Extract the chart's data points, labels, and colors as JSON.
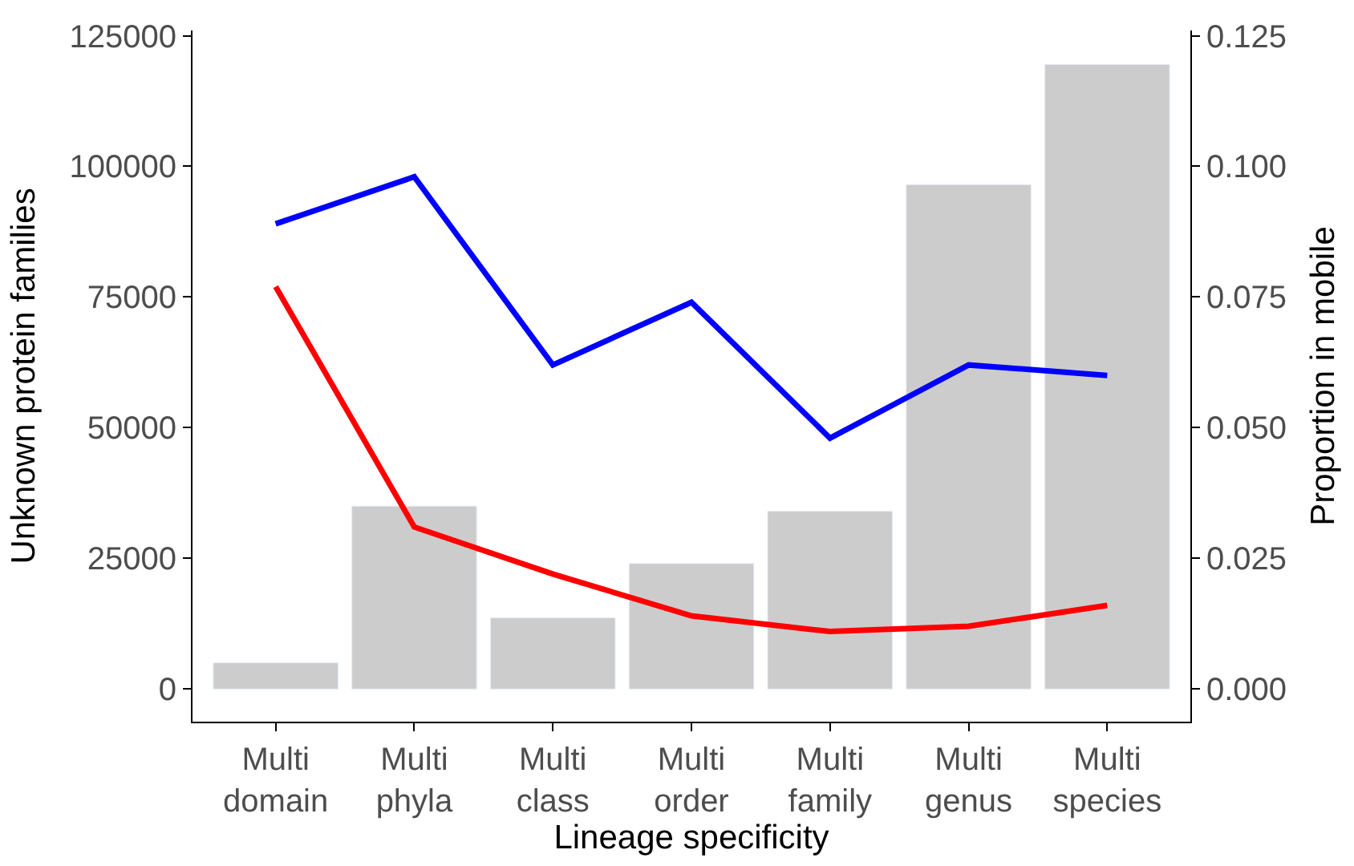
{
  "chart_data": {
    "type": "bar",
    "xlabel": "Lineage specificity",
    "ylabel": "Unknown protein families",
    "y2label": "Proportion in mobile",
    "categories": [
      "Multi\ndomain",
      "Multi\nphyla",
      "Multi\nclass",
      "Multi\norder",
      "Multi\nfamily",
      "Multi\ngenus",
      "Multi\nspecies"
    ],
    "series": [
      {
        "color": "#cccccc",
        "values": [
          5000,
          35000,
          13600,
          24000,
          34000,
          96500,
          119500
        ]
      },
      {
        "type": "line",
        "axis": "y2",
        "color": "#0000ff",
        "values": [
          0.089,
          0.098,
          0.062,
          0.074,
          0.048,
          0.062,
          0.06
        ]
      },
      {
        "type": "line",
        "axis": "y2",
        "color": "#ff0000",
        "values": [
          0.077,
          0.031,
          0.022,
          0.014,
          0.011,
          0.012,
          0.016
        ]
      }
    ],
    "ylim": [
      -6250,
      126000
    ],
    "yticks": [
      0,
      25000,
      50000,
      75000,
      100000,
      125000
    ],
    "y2lim": [
      -0.00625,
      0.126
    ],
    "y2ticks": [
      {
        "value": 0,
        "label": "0.000"
      },
      {
        "value": 0.025,
        "label": "0.025"
      },
      {
        "value": 0.05,
        "label": "0.050"
      },
      {
        "value": 0.075,
        "label": "0.075"
      },
      {
        "value": 0.1,
        "label": "0.100"
      },
      {
        "value": 0.125,
        "label": "0.125"
      }
    ],
    "marker": "none",
    "line_style": "solid"
  }
}
